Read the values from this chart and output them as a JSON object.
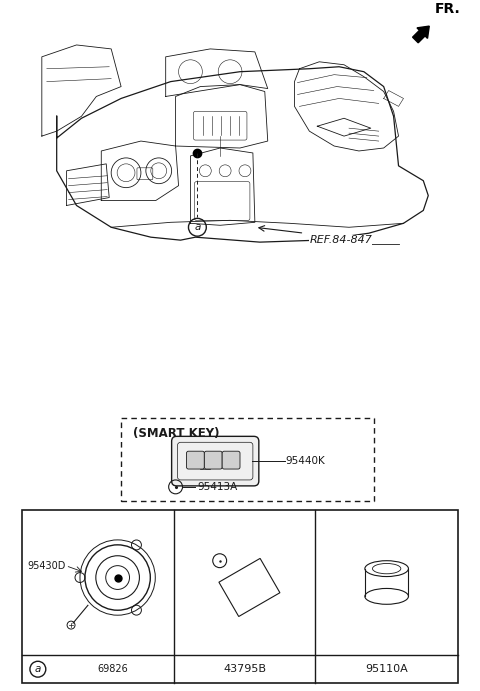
{
  "bg_color": "#ffffff",
  "fr_label": "FR.",
  "ref_label": "REF.84-847",
  "smart_key_label": "(SMART KEY)",
  "p95440K": "95440K",
  "p95413A": "95413A",
  "p95430D": "95430D",
  "p69826": "69826",
  "p43795B": "43795B",
  "p95110A": "95110A",
  "lc": "#1a1a1a",
  "fig_w": 4.8,
  "fig_h": 6.91,
  "dpi": 100
}
